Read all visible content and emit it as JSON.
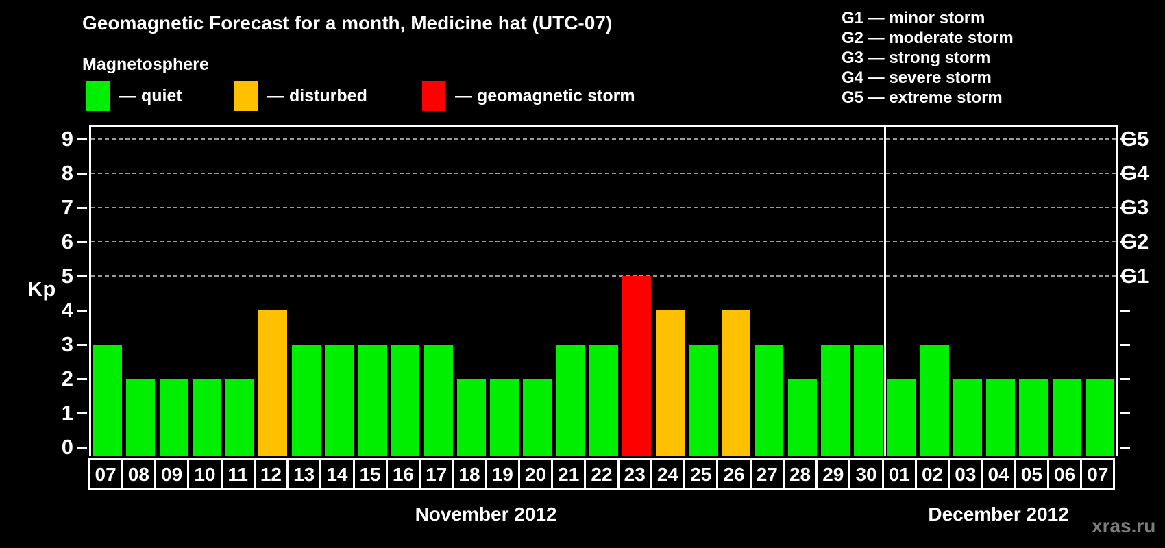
{
  "header": {
    "title": "Geomagnetic Forecast for a month, Medicine hat (UTC-07)",
    "subtitle": "Magnetosphere"
  },
  "legend": {
    "items": [
      {
        "name": "quiet",
        "label": "— quiet",
        "color": "#00ee00"
      },
      {
        "name": "disturbed",
        "label": "— disturbed",
        "color": "#ffc000"
      },
      {
        "name": "storm",
        "label": "— geomagnetic storm",
        "color": "#ff0000"
      }
    ]
  },
  "g_scale_legend": {
    "lines": [
      "G1 — minor storm",
      "G2 — moderate storm",
      "G3 — strong storm",
      "G4 — severe storm",
      "G5 — extreme storm"
    ]
  },
  "watermark": "xras.ru",
  "chart_data": {
    "type": "bar",
    "title": "Geomagnetic Forecast for a month, Medicine hat (UTC-07)",
    "ylabel": "Kp",
    "ylim": [
      0,
      9.5
    ],
    "yticks": [
      0,
      1,
      2,
      3,
      4,
      5,
      6,
      7,
      8,
      9
    ],
    "gridlines_at": [
      5,
      6,
      7,
      8,
      9
    ],
    "grid": "horizontal dashed gray lines at storm levels only",
    "legend_position": "top-left",
    "right_axis": [
      {
        "kp": 5,
        "label": "G1"
      },
      {
        "kp": 6,
        "label": "G2"
      },
      {
        "kp": 7,
        "label": "G3"
      },
      {
        "kp": 8,
        "label": "G4"
      },
      {
        "kp": 9,
        "label": "G5"
      }
    ],
    "status_colors": {
      "quiet": "#00ee00",
      "disturbed": "#ffc000",
      "storm": "#ff0000"
    },
    "months": [
      {
        "label": "November 2012",
        "start_index": 0,
        "days": 24
      },
      {
        "label": "December 2012",
        "start_index": 24,
        "days": 7
      }
    ],
    "bars": [
      {
        "day": "07",
        "month": "November 2012",
        "kp": 3,
        "status": "quiet"
      },
      {
        "day": "08",
        "month": "November 2012",
        "kp": 2,
        "status": "quiet"
      },
      {
        "day": "09",
        "month": "November 2012",
        "kp": 2,
        "status": "quiet"
      },
      {
        "day": "10",
        "month": "November 2012",
        "kp": 2,
        "status": "quiet"
      },
      {
        "day": "11",
        "month": "November 2012",
        "kp": 2,
        "status": "quiet"
      },
      {
        "day": "12",
        "month": "November 2012",
        "kp": 4,
        "status": "disturbed"
      },
      {
        "day": "13",
        "month": "November 2012",
        "kp": 3,
        "status": "quiet"
      },
      {
        "day": "14",
        "month": "November 2012",
        "kp": 3,
        "status": "quiet"
      },
      {
        "day": "15",
        "month": "November 2012",
        "kp": 3,
        "status": "quiet"
      },
      {
        "day": "16",
        "month": "November 2012",
        "kp": 3,
        "status": "quiet"
      },
      {
        "day": "17",
        "month": "November 2012",
        "kp": 3,
        "status": "quiet"
      },
      {
        "day": "18",
        "month": "November 2012",
        "kp": 2,
        "status": "quiet"
      },
      {
        "day": "19",
        "month": "November 2012",
        "kp": 2,
        "status": "quiet"
      },
      {
        "day": "20",
        "month": "November 2012",
        "kp": 2,
        "status": "quiet"
      },
      {
        "day": "21",
        "month": "November 2012",
        "kp": 3,
        "status": "quiet"
      },
      {
        "day": "22",
        "month": "November 2012",
        "kp": 3,
        "status": "quiet"
      },
      {
        "day": "23",
        "month": "November 2012",
        "kp": 5,
        "status": "storm"
      },
      {
        "day": "24",
        "month": "November 2012",
        "kp": 4,
        "status": "disturbed"
      },
      {
        "day": "25",
        "month": "November 2012",
        "kp": 3,
        "status": "quiet"
      },
      {
        "day": "26",
        "month": "November 2012",
        "kp": 4,
        "status": "disturbed"
      },
      {
        "day": "27",
        "month": "November 2012",
        "kp": 3,
        "status": "quiet"
      },
      {
        "day": "28",
        "month": "November 2012",
        "kp": 2,
        "status": "quiet"
      },
      {
        "day": "29",
        "month": "November 2012",
        "kp": 3,
        "status": "quiet"
      },
      {
        "day": "30",
        "month": "November 2012",
        "kp": 3,
        "status": "quiet"
      },
      {
        "day": "01",
        "month": "December 2012",
        "kp": 2,
        "status": "quiet"
      },
      {
        "day": "02",
        "month": "December 2012",
        "kp": 3,
        "status": "quiet"
      },
      {
        "day": "03",
        "month": "December 2012",
        "kp": 2,
        "status": "quiet"
      },
      {
        "day": "04",
        "month": "December 2012",
        "kp": 2,
        "status": "quiet"
      },
      {
        "day": "05",
        "month": "December 2012",
        "kp": 2,
        "status": "quiet"
      },
      {
        "day": "06",
        "month": "December 2012",
        "kp": 2,
        "status": "quiet"
      },
      {
        "day": "07",
        "month": "December 2012",
        "kp": 2,
        "status": "quiet"
      }
    ]
  }
}
